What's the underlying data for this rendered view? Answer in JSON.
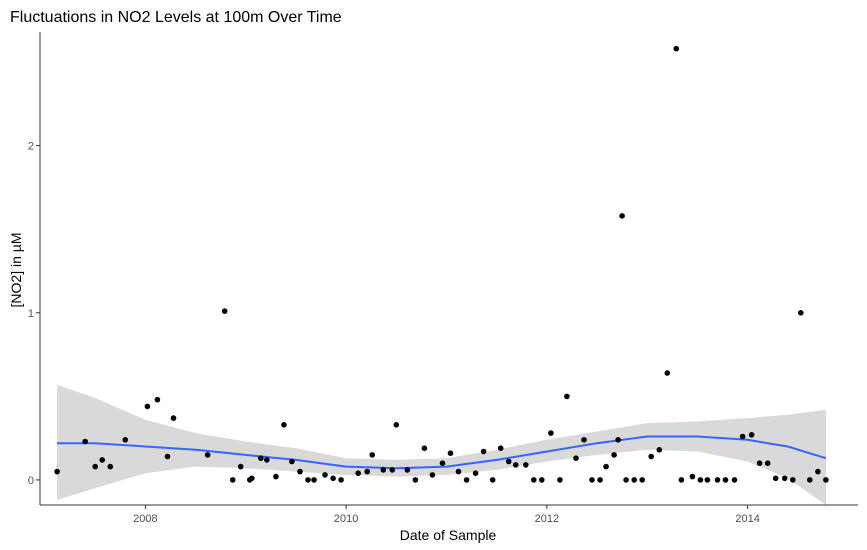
{
  "chart_data": {
    "type": "scatter",
    "title": "Fluctuations in NO2 Levels at 100m Over Time",
    "xlabel": "Date of Sample",
    "ylabel": "[NO2] in µM",
    "x_ticks": [
      "2008",
      "2010",
      "2012",
      "2014"
    ],
    "y_ticks": [
      "0",
      "1",
      "2"
    ],
    "xlim": [
      2006.95,
      2015.1
    ],
    "ylim": [
      -0.15,
      2.68
    ],
    "grid": false,
    "legend": "none",
    "colors": {
      "points": "#000000",
      "smooth_line": "#3366ff",
      "confidence_band": "#d9d9d9",
      "axis": "#333333"
    },
    "series": [
      {
        "kind": "points",
        "x": [
          2007.12,
          2007.4,
          2007.5,
          2007.57,
          2007.65,
          2007.8,
          2008.02,
          2008.12,
          2008.22,
          2008.28,
          2008.62,
          2008.79,
          2008.87,
          2008.95,
          2009.04,
          2009.06,
          2009.15,
          2009.21,
          2009.3,
          2009.38,
          2009.46,
          2009.54,
          2009.62,
          2009.68,
          2009.79,
          2009.87,
          2009.95,
          2010.12,
          2010.21,
          2010.26,
          2010.37,
          2010.46,
          2010.5,
          2010.61,
          2010.69,
          2010.78,
          2010.86,
          2010.96,
          2011.04,
          2011.12,
          2011.2,
          2011.29,
          2011.37,
          2011.46,
          2011.54,
          2011.62,
          2011.69,
          2011.79,
          2011.87,
          2011.95,
          2012.04,
          2012.13,
          2012.2,
          2012.29,
          2012.37,
          2012.45,
          2012.53,
          2012.59,
          2012.67,
          2012.71,
          2012.75,
          2012.79,
          2012.87,
          2012.95,
          2013.04,
          2013.12,
          2013.2,
          2013.29,
          2013.34,
          2013.45,
          2013.53,
          2013.6,
          2013.7,
          2013.78,
          2013.87,
          2013.95,
          2014.04,
          2014.12,
          2014.2,
          2014.28,
          2014.37,
          2014.45,
          2014.53,
          2014.62,
          2014.7,
          2014.78
        ],
        "y": [
          0.05,
          0.23,
          0.08,
          0.12,
          0.08,
          0.24,
          0.44,
          0.48,
          0.14,
          0.37,
          0.15,
          1.01,
          0.0,
          0.08,
          0.0,
          0.01,
          0.13,
          0.12,
          0.02,
          0.33,
          0.11,
          0.05,
          0.0,
          0.0,
          0.03,
          0.01,
          0.0,
          0.04,
          0.05,
          0.15,
          0.06,
          0.06,
          0.33,
          0.06,
          0.0,
          0.19,
          0.03,
          0.1,
          0.16,
          0.05,
          0.0,
          0.04,
          0.17,
          0.0,
          0.19,
          0.11,
          0.09,
          0.09,
          0.0,
          0.0,
          0.28,
          0.0,
          0.5,
          0.13,
          0.24,
          0.0,
          0.0,
          0.08,
          0.15,
          0.24,
          1.58,
          0.0,
          0.0,
          0.0,
          0.14,
          0.18,
          0.64,
          2.58,
          0.0,
          0.02,
          0.0,
          0.0,
          0.0,
          0.0,
          0.0,
          0.26,
          0.27,
          0.1,
          0.1,
          0.01,
          0.01,
          0.0,
          1.0,
          0.0,
          0.05,
          0.0
        ]
      },
      {
        "kind": "smooth",
        "x": [
          2007.12,
          2007.5,
          2008.0,
          2008.5,
          2009.0,
          2009.5,
          2010.0,
          2010.5,
          2011.0,
          2011.5,
          2012.0,
          2012.5,
          2013.0,
          2013.5,
          2014.0,
          2014.4,
          2014.78
        ],
        "y": [
          0.22,
          0.22,
          0.2,
          0.18,
          0.15,
          0.12,
          0.08,
          0.07,
          0.08,
          0.12,
          0.17,
          0.22,
          0.26,
          0.26,
          0.24,
          0.2,
          0.13
        ],
        "ci_lower": [
          -0.12,
          -0.05,
          0.04,
          0.08,
          0.07,
          0.05,
          0.03,
          0.02,
          0.03,
          0.06,
          0.11,
          0.15,
          0.18,
          0.17,
          0.11,
          0.01,
          -0.15
        ],
        "ci_upper": [
          0.57,
          0.49,
          0.36,
          0.28,
          0.23,
          0.19,
          0.13,
          0.12,
          0.13,
          0.18,
          0.24,
          0.29,
          0.34,
          0.35,
          0.37,
          0.39,
          0.42
        ]
      }
    ]
  }
}
